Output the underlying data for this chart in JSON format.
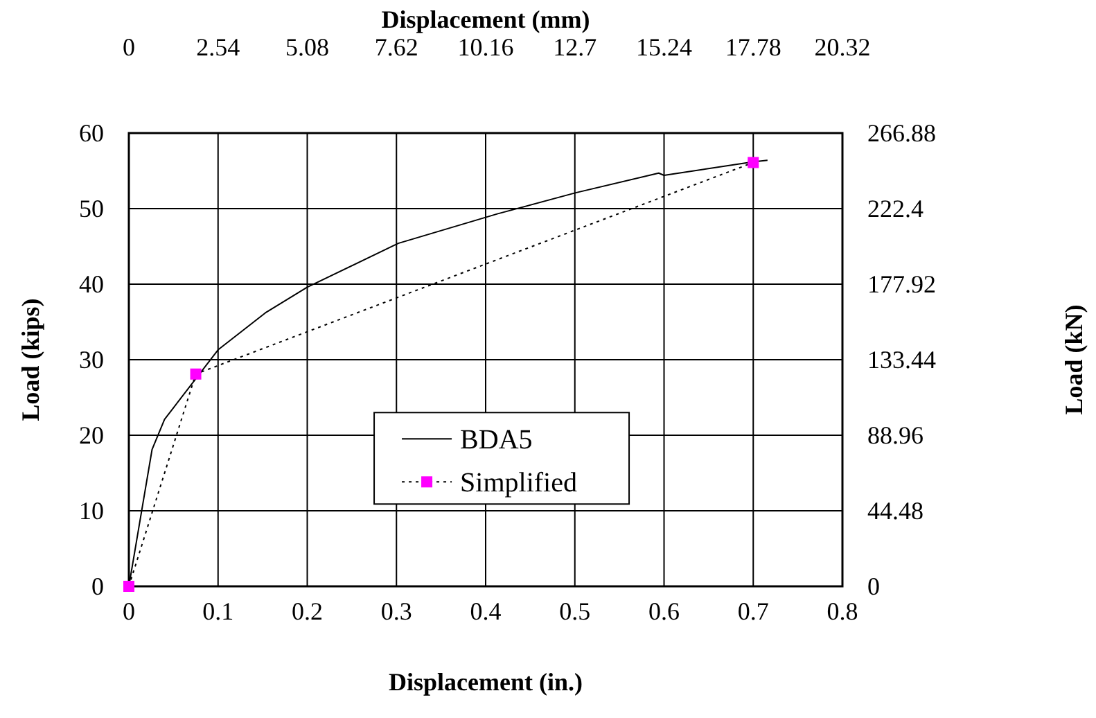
{
  "chart_data": {
    "type": "line",
    "xlabel": "Displacement (in.)",
    "x2label": "Displacement (mm)",
    "ylabel": "Load (kips)",
    "y2label": "Load (kN)",
    "xlim": [
      0,
      0.8
    ],
    "xticks": [
      0,
      0.1,
      0.2,
      0.3,
      0.4,
      0.5,
      0.6,
      0.7,
      0.8
    ],
    "x2lim": [
      0,
      20.32
    ],
    "x2ticks": [
      0,
      2.54,
      5.08,
      7.62,
      10.16,
      12.7,
      15.24,
      17.78,
      20.32
    ],
    "ylim": [
      0,
      60
    ],
    "yticks": [
      0,
      10,
      20,
      30,
      40,
      50,
      60
    ],
    "y2lim": [
      0,
      266.88
    ],
    "y2ticks": [
      0,
      44.48,
      88.96,
      133.44,
      177.92,
      222.4,
      266.88
    ],
    "grid": true,
    "legend": "bottom",
    "series": [
      {
        "name": "BDA5",
        "color": "#000000",
        "line_style": "solid",
        "marker": "none",
        "x": [
          0,
          0.026,
          0.04,
          0.1,
          0.153,
          0.2,
          0.302,
          0.413,
          0.501,
          0.594,
          0.6,
          0.7,
          0.716
        ],
        "values": [
          0,
          18.1,
          22.1,
          31.3,
          36.2,
          39.6,
          45.4,
          49.3,
          52.1,
          54.7,
          54.4,
          56.2,
          56.4
        ]
      },
      {
        "name": "Simplified",
        "color": "#ff00ff",
        "line_style": "dotted",
        "marker": "square",
        "x": [
          0,
          0.075,
          0.7
        ],
        "values": [
          0,
          28.1,
          56.1
        ]
      }
    ]
  }
}
